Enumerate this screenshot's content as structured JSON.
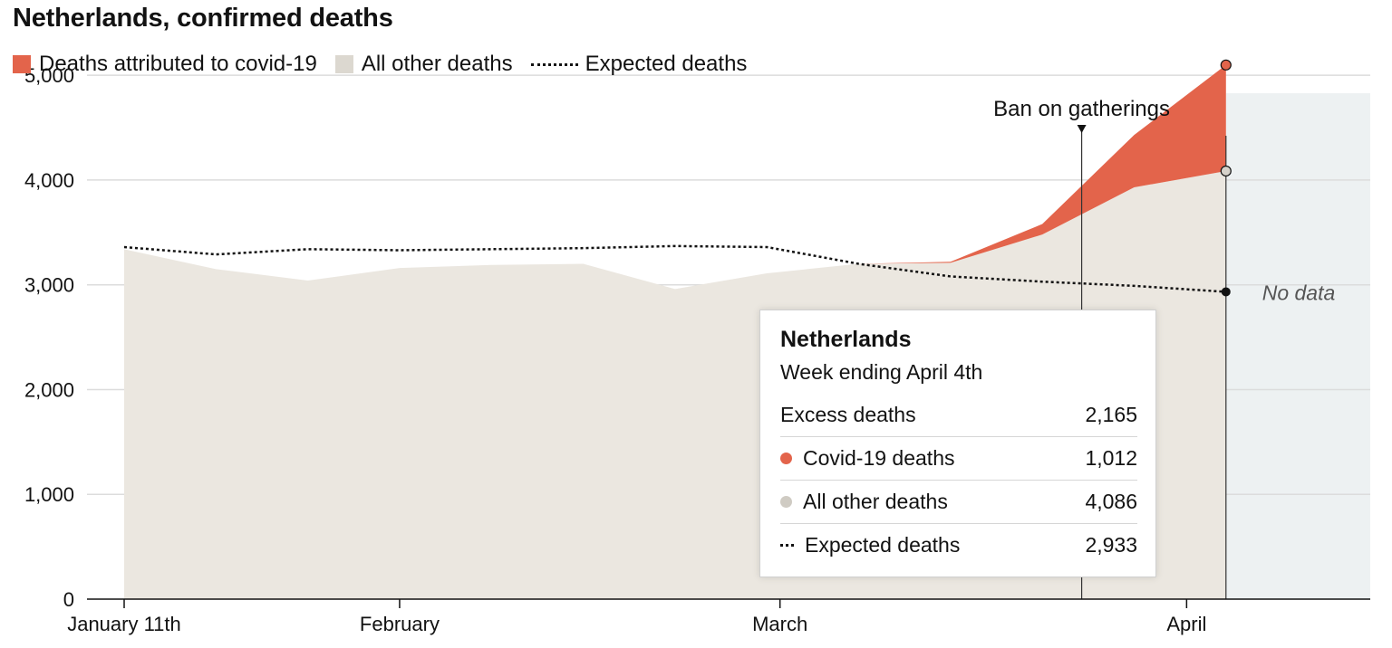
{
  "chart_data": {
    "type": "area",
    "title": "Netherlands, confirmed deaths",
    "legend": [
      {
        "name": "Deaths attributed to covid-19",
        "color": "#e3644b",
        "kind": "swatch"
      },
      {
        "name": "All other deaths",
        "color": "#dcd8d0",
        "kind": "swatch"
      },
      {
        "name": "Expected deaths",
        "color": "#121212",
        "kind": "dotted-line"
      }
    ],
    "x_dates": [
      "2020-01-11",
      "2020-01-18",
      "2020-01-25",
      "2020-02-01",
      "2020-02-08",
      "2020-02-15",
      "2020-02-22",
      "2020-02-29",
      "2020-03-07",
      "2020-03-14",
      "2020-03-21",
      "2020-03-28",
      "2020-04-04"
    ],
    "series": [
      {
        "name": "All other deaths",
        "values": [
          3340,
          3150,
          3040,
          3160,
          3190,
          3200,
          2960,
          3110,
          3200,
          3210,
          3480,
          3930,
          4086
        ]
      },
      {
        "name": "Deaths attributed to covid-19",
        "values": [
          0,
          0,
          0,
          0,
          0,
          0,
          0,
          0,
          0,
          10,
          100,
          500,
          1012
        ]
      },
      {
        "name": "Expected deaths",
        "values": [
          3360,
          3290,
          3340,
          3330,
          3340,
          3350,
          3370,
          3360,
          3200,
          3080,
          3030,
          2990,
          2933
        ]
      }
    ],
    "ylim": [
      0,
      5200
    ],
    "y_ticks": [
      {
        "value": 0,
        "label": "0"
      },
      {
        "value": 1000,
        "label": "1,000"
      },
      {
        "value": 2000,
        "label": "2,000"
      },
      {
        "value": 3000,
        "label": "3,000"
      },
      {
        "value": 4000,
        "label": "4,000"
      },
      {
        "value": 5000,
        "label": "5,000"
      }
    ],
    "x_ticks": [
      {
        "date": "2020-01-11",
        "label": "January 11th"
      },
      {
        "date": "2020-02-01",
        "label": "February"
      },
      {
        "date": "2020-03-01",
        "label": "March"
      },
      {
        "date": "2020-04-01",
        "label": "April"
      }
    ],
    "x_range": [
      "2020-01-11",
      "2020-04-15"
    ],
    "no_data_from": "2020-04-04",
    "no_data_label": "No data",
    "annotation": {
      "date": "2020-03-24",
      "label": "Ban on gatherings"
    },
    "grid": true,
    "legend_position": "top-left"
  },
  "tooltip": {
    "title": "Netherlands",
    "subtitle": "Week ending April 4th",
    "rows": [
      {
        "label": "Excess deaths",
        "value": "2,165"
      },
      {
        "label": "Covid-19 deaths",
        "value": "1,012"
      },
      {
        "label": "All other deaths",
        "value": "4,086"
      },
      {
        "label": "Expected deaths",
        "value": "2,933"
      }
    ]
  }
}
